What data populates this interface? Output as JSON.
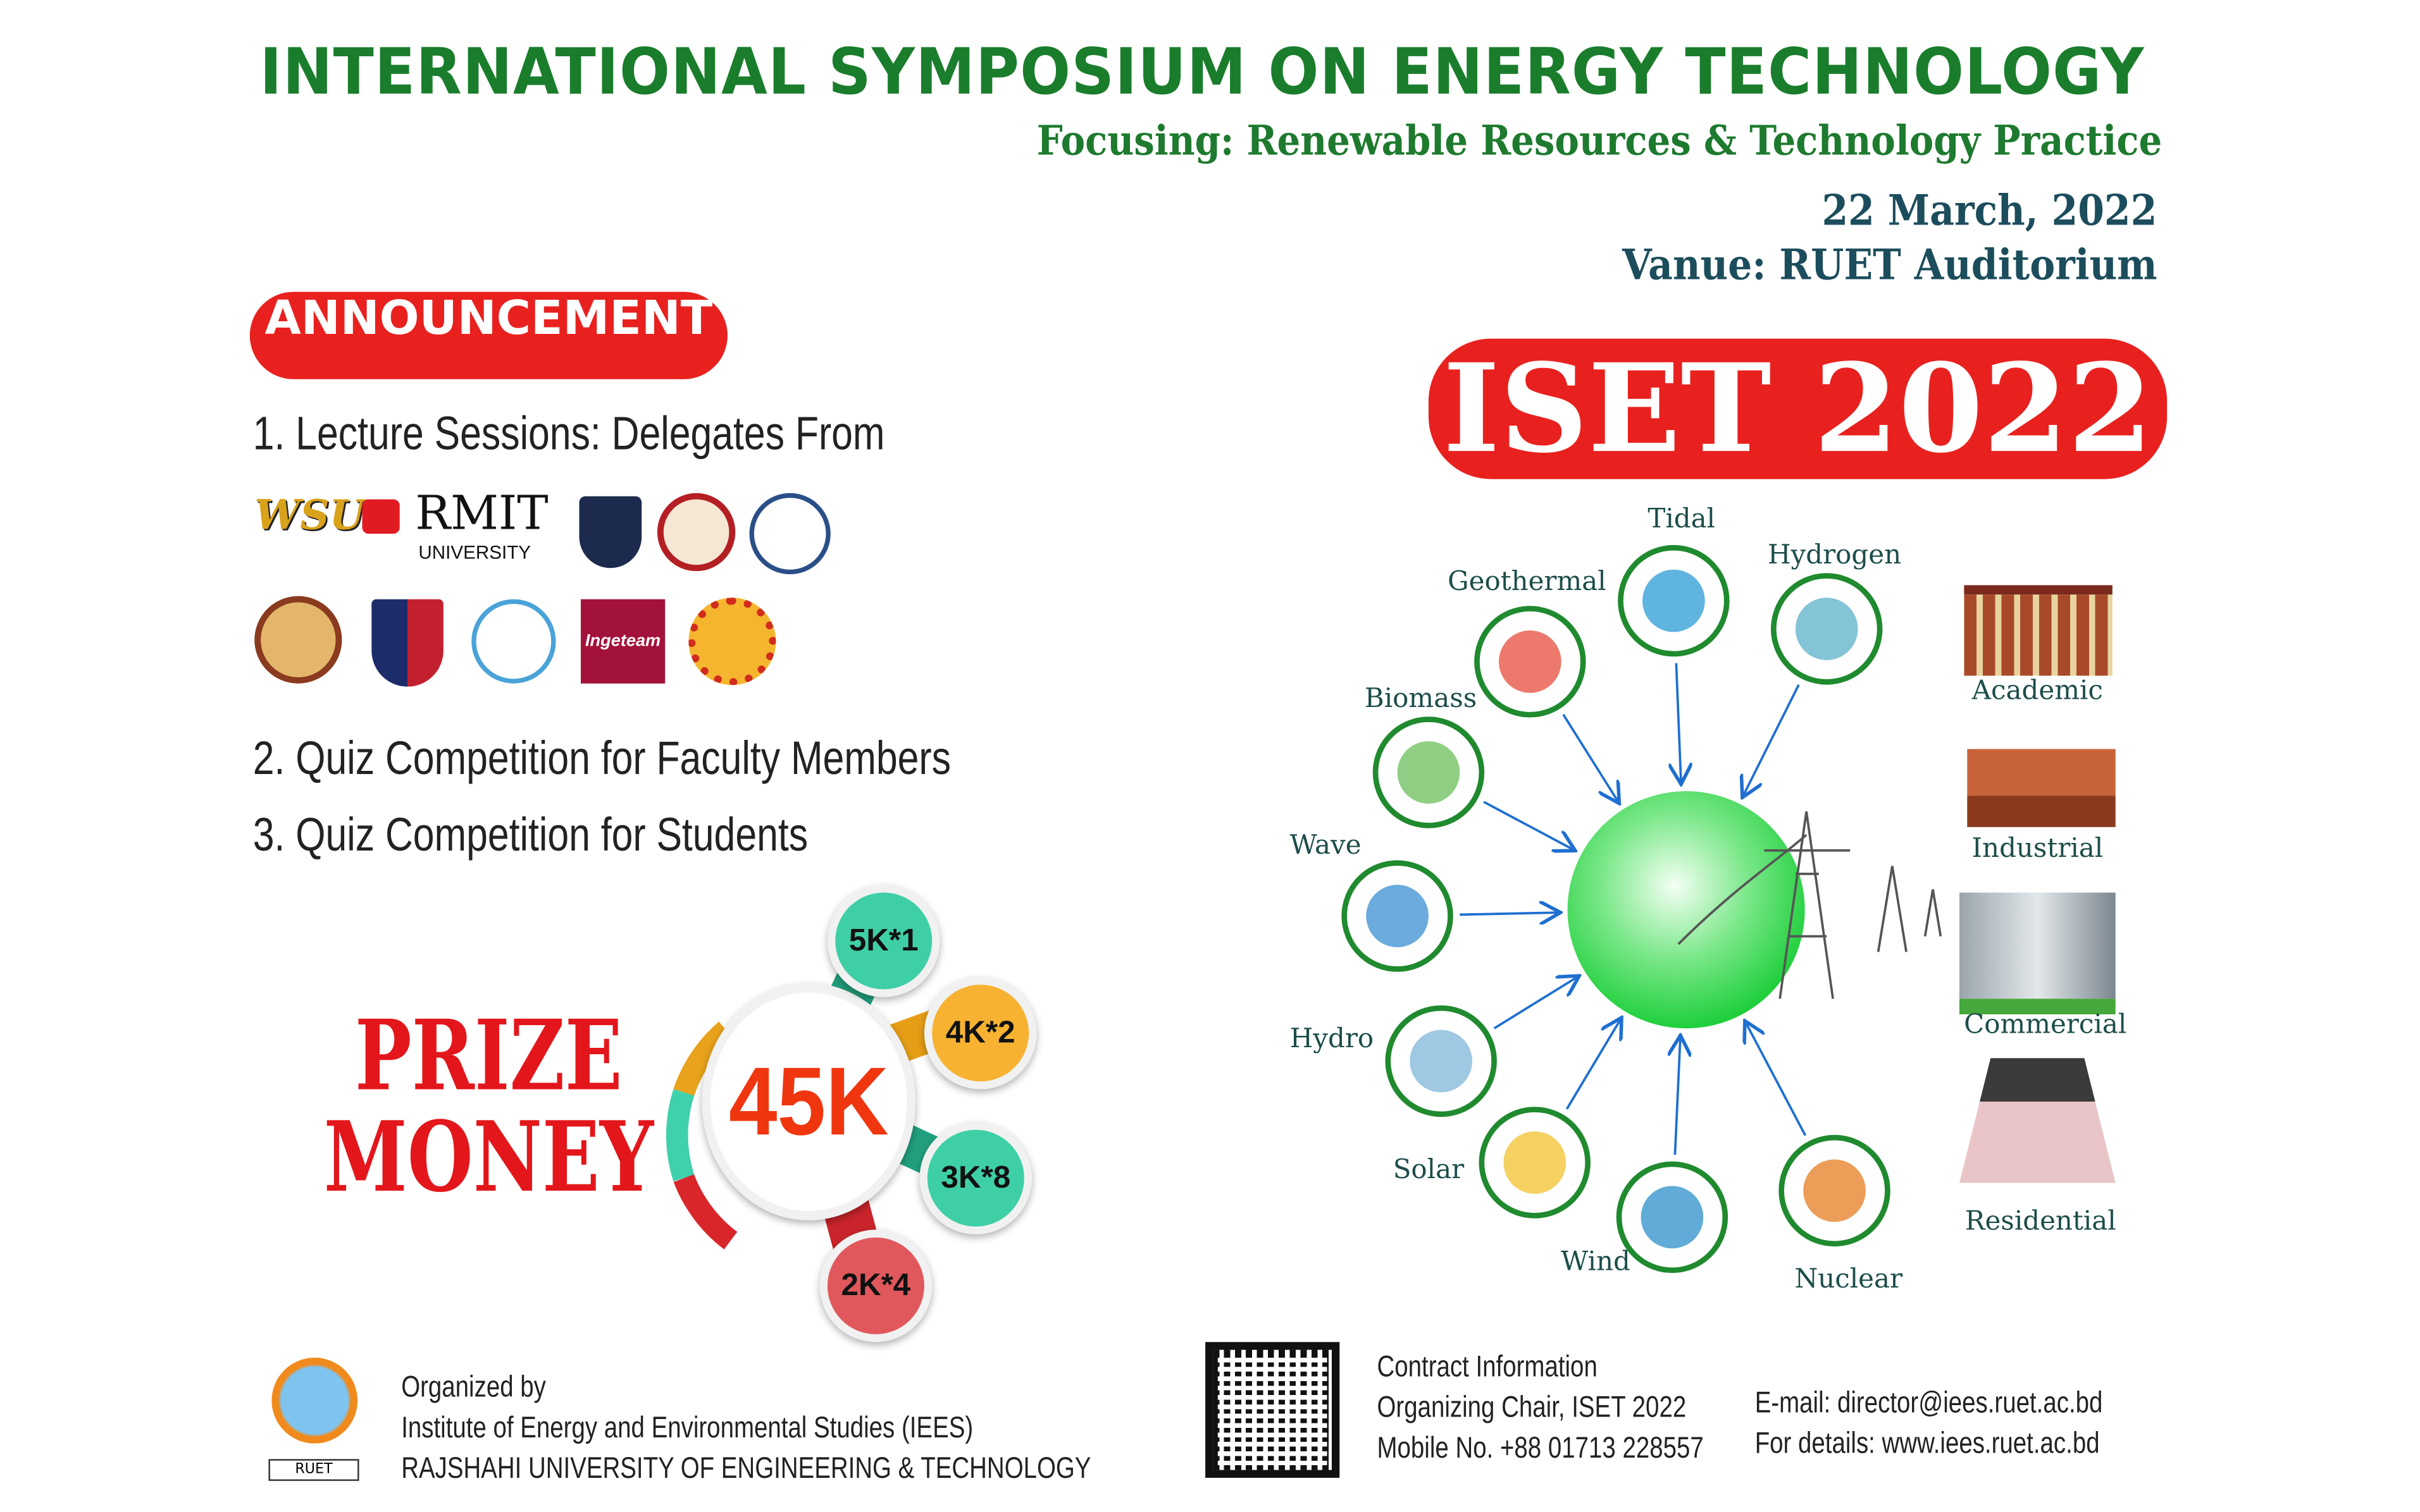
{
  "header": {
    "title": "INTERNATIONAL SYMPOSIUM ON ENERGY TECHNOLOGY",
    "subtitle": "Focusing: Renewable Resources & Technology Practice",
    "date": "22 March, 2022",
    "venue": "Vanue: RUET Auditorium"
  },
  "announcement": {
    "badge": "ANNOUNCEMENT",
    "items": [
      "1. Lecture Sessions: Delegates From",
      "2. Quiz Competition for Faculty Members",
      "3. Quiz Competition for Students"
    ],
    "logos": {
      "rmit": "RMIT",
      "rmit_sub": "UNIVERSITY",
      "wsu": "WSU",
      "ingeteam": "Ingeteam"
    }
  },
  "prize": {
    "line1": "PRIZE",
    "line2": "MONEY",
    "total": "45K",
    "tiers": [
      "5K*1",
      "4K*2",
      "3K*8",
      "2K*4"
    ],
    "colors": [
      "#3fcfa6",
      "#f7b232",
      "#3fcfa6",
      "#e0585c"
    ]
  },
  "iset": {
    "badge": "ISET 2022"
  },
  "sources": [
    "Tidal",
    "Hydrogen",
    "Geothermal",
    "Biomass",
    "Wave",
    "Hydro",
    "Solar",
    "Wind",
    "Nuclear"
  ],
  "consumers": [
    "Academic",
    "Industrial",
    "Commercial",
    "Residential"
  ],
  "footer": {
    "organized_by": "Organized by",
    "institute": "Institute of Energy and Environmental Studies (IEES)",
    "university": "RAJSHAHI UNIVERSITY OF ENGINEERING & TECHNOLOGY",
    "ruet": "RUET",
    "contact_title": "Contract Information",
    "chair": "Organizing Chair, ISET 2022",
    "mobile": "Mobile No. +88 01713 228557",
    "email": "E-mail: director@iees.ruet.ac.bd",
    "details": "For details: www.iees.ruet.ac.bd"
  }
}
